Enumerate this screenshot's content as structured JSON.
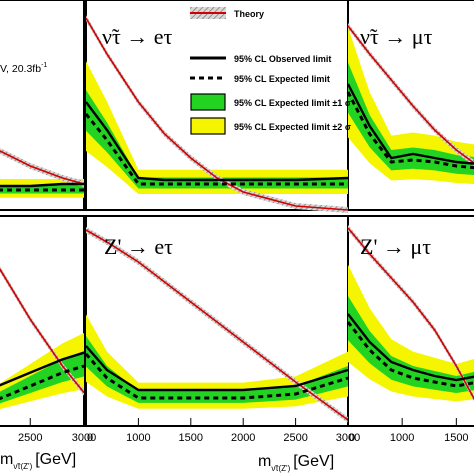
{
  "page_note": "Crop of a six-panel figure: limits on production cross section times branching ratio versus resonance mass.",
  "energy_label": "V, 20.3fb",
  "energy_sup": "-1",
  "xlabel_left": "m",
  "xlabel_left_sub": "ν̃τ(Z')",
  "xlabel_left_unit": "[GeV]",
  "xlabel_center": "m",
  "xlabel_center_sub": "ν̃τ(Z')",
  "xlabel_center_unit": "[GeV]",
  "panel_titles": {
    "top_center": "ν̃τ → eτ",
    "top_right": "ν̃τ → μτ",
    "bottom_center": "Z' → eτ",
    "bottom_right": "Z' → μτ"
  },
  "legend": {
    "theory": "Theory",
    "observed": "95% CL Observed limit",
    "expected": "95% CL Expected limit",
    "band1": "95% CL Expected limit ±1 σ",
    "band2": "95% CL Expected limit ±2 σ"
  },
  "colors": {
    "theory": "#d40000",
    "band1": "#22d322",
    "band2": "#f5f500",
    "observed": "#000000",
    "theory_hatch": "#9a9a9a"
  },
  "chart_data": [
    {
      "type": "line",
      "panel": "top-left (cropped)",
      "x": [
        2200,
        2500,
        2800,
        3000
      ],
      "series": [
        {
          "name": "Theory",
          "values": [
            0.3,
            0.22,
            0.16,
            0.13
          ]
        },
        {
          "name": "95% CL Observed limit",
          "values": [
            0.12,
            0.12,
            0.13,
            0.13
          ]
        },
        {
          "name": "95% CL Expected limit",
          "values": [
            0.1,
            0.1,
            0.1,
            0.1
          ]
        }
      ],
      "xlim": [
        2200,
        3000
      ]
    },
    {
      "type": "line",
      "panel": "top-center",
      "title": "ν̃τ → eτ",
      "x": [
        500,
        700,
        1000,
        1250,
        1500,
        1750,
        2000,
        2500,
        3000
      ],
      "series": [
        {
          "name": "Theory",
          "values": [
            9.6,
            7.8,
            5.4,
            3.8,
            2.6,
            1.6,
            0.9,
            0.2,
            0.0
          ]
        },
        {
          "name": "95% CL Observed limit",
          "values": [
            5.4,
            4.0,
            1.6,
            1.5,
            1.5,
            1.5,
            1.5,
            1.5,
            1.6
          ]
        },
        {
          "name": "95% CL Expected limit",
          "values": [
            4.8,
            3.5,
            1.3,
            1.3,
            1.3,
            1.3,
            1.3,
            1.3,
            1.3
          ]
        }
      ],
      "xlim": [
        500,
        3000
      ],
      "ylim": [
        0,
        10
      ]
    },
    {
      "type": "line",
      "panel": "top-right (cropped)",
      "title": "ν̃τ → μτ",
      "x": [
        500,
        700,
        900,
        1100,
        1300,
        1500,
        1700
      ],
      "series": [
        {
          "name": "Theory",
          "values": [
            9.2,
            7.8,
            6.5,
            5.2,
            4.0,
            3.0,
            2.2
          ]
        },
        {
          "name": "95% CL Observed limit",
          "values": [
            6.3,
            4.2,
            2.6,
            2.8,
            2.6,
            2.4,
            2.3
          ]
        },
        {
          "name": "95% CL Expected limit",
          "values": [
            5.9,
            3.8,
            2.4,
            2.5,
            2.4,
            2.2,
            2.1
          ]
        }
      ],
      "xlim": [
        500,
        1700
      ],
      "ylim": [
        0,
        10
      ]
    },
    {
      "type": "line",
      "panel": "bottom-left (cropped)",
      "x": [
        2200,
        2500,
        2800,
        3000
      ],
      "series": [
        {
          "name": "Theory",
          "values": [
            2.4,
            1.6,
            0.9,
            0.5
          ]
        },
        {
          "name": "95% CL Observed limit",
          "values": [
            0.6,
            0.8,
            1.0,
            1.1
          ]
        },
        {
          "name": "95% CL Expected limit",
          "values": [
            0.4,
            0.6,
            0.8,
            0.9
          ]
        }
      ],
      "xlim": [
        2200,
        3000
      ],
      "x_ticks": [
        "2500",
        "3000"
      ]
    },
    {
      "type": "line",
      "panel": "bottom-center",
      "title": "Z' → eτ",
      "x": [
        500,
        700,
        1000,
        1500,
        2000,
        2500,
        3000
      ],
      "series": [
        {
          "name": "Theory",
          "values": [
            9.8,
            9.2,
            8.2,
            6.2,
            4.2,
            2.2,
            0.3
          ]
        },
        {
          "name": "95% CL Observed limit",
          "values": [
            4.0,
            2.8,
            1.8,
            1.8,
            1.8,
            2.0,
            2.8
          ]
        },
        {
          "name": "95% CL Expected limit",
          "values": [
            3.6,
            2.4,
            1.4,
            1.4,
            1.4,
            1.6,
            2.4
          ]
        }
      ],
      "xlim": [
        500,
        3000
      ],
      "ylim": [
        0,
        10
      ],
      "x_ticks": [
        "1000",
        "1500",
        "2000",
        "2500",
        "3000"
      ],
      "x_tick_extra": "0"
    },
    {
      "type": "line",
      "panel": "bottom-right (cropped)",
      "title": "Z' → μτ",
      "x": [
        500,
        700,
        900,
        1100,
        1300,
        1500,
        1700
      ],
      "series": [
        {
          "name": "Theory",
          "values": [
            9.9,
            8.6,
            7.4,
            6.2,
            4.8,
            3.0,
            1.0
          ]
        },
        {
          "name": "95% CL Observed limit",
          "values": [
            5.6,
            4.2,
            3.2,
            2.8,
            2.5,
            2.3,
            2.5
          ]
        },
        {
          "name": "95% CL Expected limit",
          "values": [
            5.2,
            3.8,
            2.8,
            2.4,
            2.2,
            2.0,
            2.2
          ]
        }
      ],
      "xlim": [
        500,
        1700
      ],
      "ylim": [
        0,
        10
      ],
      "x_ticks": [
        "1000",
        "1500"
      ],
      "x_tick_extra": "0"
    }
  ]
}
